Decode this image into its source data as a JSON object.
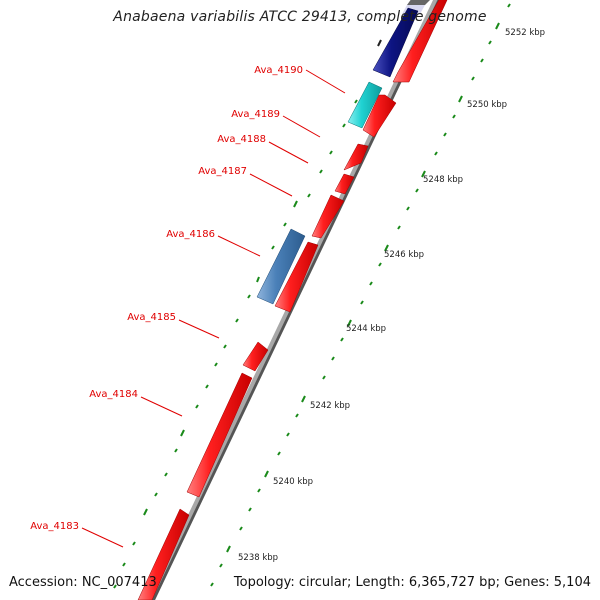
{
  "title": "Anabaena variabilis ATCC 29413, complete genome",
  "accession": "Accession: NC_007413",
  "summary": "Topology: circular; Length: 6,365,727 bp; Genes: 5,104",
  "colors": {
    "cds_forward": "#ff1f1f",
    "cds_navy": "#0d1483",
    "cds_cyan": "#20d2d2",
    "cds_steel": "#4a80b8",
    "backbone": "#8c8c8c",
    "tick": "#1a8a1a",
    "label": "#e00000",
    "leader": "#e00000"
  },
  "gene_labels": [
    {
      "id": "ava4190",
      "text": "Ava_4190"
    },
    {
      "id": "ava4189",
      "text": "Ava_4189"
    },
    {
      "id": "ava4188",
      "text": "Ava_4188"
    },
    {
      "id": "ava4187",
      "text": "Ava_4187"
    },
    {
      "id": "ava4186",
      "text": "Ava_4186"
    },
    {
      "id": "ava4185",
      "text": "Ava_4185"
    },
    {
      "id": "ava4184",
      "text": "Ava_4184"
    },
    {
      "id": "ava4183",
      "text": "Ava_4183"
    }
  ],
  "scale_labels": [
    {
      "id": "5252",
      "text": "5252 kbp"
    },
    {
      "id": "5250",
      "text": "5250 kbp"
    },
    {
      "id": "5248",
      "text": "5248 kbp"
    },
    {
      "id": "5246",
      "text": "5246 kbp"
    },
    {
      "id": "5244",
      "text": "5244 kbp"
    },
    {
      "id": "5242",
      "text": "5242 kbp"
    },
    {
      "id": "5240",
      "text": "5240 kbp"
    },
    {
      "id": "5238",
      "text": "5238 kbp"
    }
  ]
}
